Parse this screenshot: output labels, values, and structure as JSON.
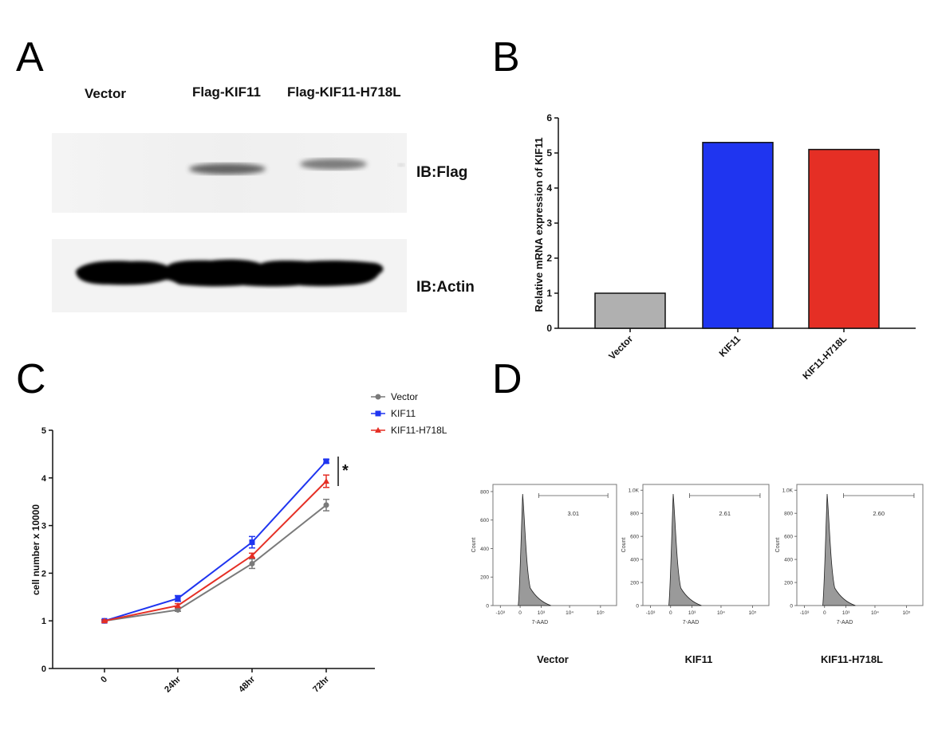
{
  "panels": {
    "A": {
      "letter": "A",
      "lanes": [
        "Vector",
        "Flag-KIF11",
        "Flag-KIF11-H718L"
      ],
      "blots": [
        "IB:Flag",
        "IB:Actin"
      ]
    },
    "B": {
      "letter": "B",
      "chart_data": {
        "type": "bar",
        "categories": [
          "Vector",
          "KIF11",
          "KIF11-H718L"
        ],
        "values": [
          1.0,
          5.3,
          5.1
        ],
        "colors": [
          "#b0b0b0",
          "#1f35f0",
          "#e52f25"
        ],
        "ylabel": "Relative mRNA expression of KIF11",
        "ylim": [
          0,
          6
        ],
        "yticks": [
          0,
          1,
          2,
          3,
          4,
          5,
          6
        ],
        "grid": false
      }
    },
    "C": {
      "letter": "C",
      "chart_data": {
        "type": "line",
        "categories": [
          "0",
          "24hr",
          "48hr",
          "72hr"
        ],
        "series": [
          {
            "name": "Vector",
            "color": "#7a7a7a",
            "marker": "circle",
            "values": [
              1.0,
              1.23,
              2.2,
              3.43
            ],
            "errors": [
              0.02,
              0.03,
              0.1,
              0.12
            ]
          },
          {
            "name": "KIF11",
            "color": "#1f35f0",
            "marker": "square",
            "values": [
              1.0,
              1.47,
              2.65,
              4.35
            ],
            "errors": [
              0.02,
              0.06,
              0.12,
              0.04
            ]
          },
          {
            "name": "KIF11-H718L",
            "color": "#e52f25",
            "marker": "triangle",
            "values": [
              1.0,
              1.32,
              2.37,
              3.93
            ],
            "errors": [
              0.02,
              0.04,
              0.05,
              0.13
            ]
          }
        ],
        "ylabel": "cell number x 10000",
        "ylim": [
          0,
          5
        ],
        "yticks": [
          0,
          1,
          2,
          3,
          4,
          5
        ],
        "legend_position": "top-right",
        "annotation": "*",
        "grid": false
      }
    },
    "D": {
      "letter": "D",
      "xlabel": "7-AAD",
      "ylabel": "Count",
      "xticks": [
        "-10³",
        "0",
        "10³",
        "10⁴",
        "10⁵"
      ],
      "histograms": [
        {
          "name": "Vector",
          "gate_value": "3.01",
          "yticks": [
            "0",
            "200",
            "400",
            "600",
            "800"
          ],
          "ymax": 850
        },
        {
          "name": "KIF11",
          "gate_value": "2.61",
          "yticks": [
            "0",
            "200",
            "400",
            "600",
            "800",
            "1.0K"
          ],
          "ymax": 1050
        },
        {
          "name": "KIF11-H718L",
          "gate_value": "2.60",
          "yticks": [
            "0",
            "200",
            "400",
            "600",
            "800",
            "1.0K"
          ],
          "ymax": 1050
        }
      ]
    }
  }
}
